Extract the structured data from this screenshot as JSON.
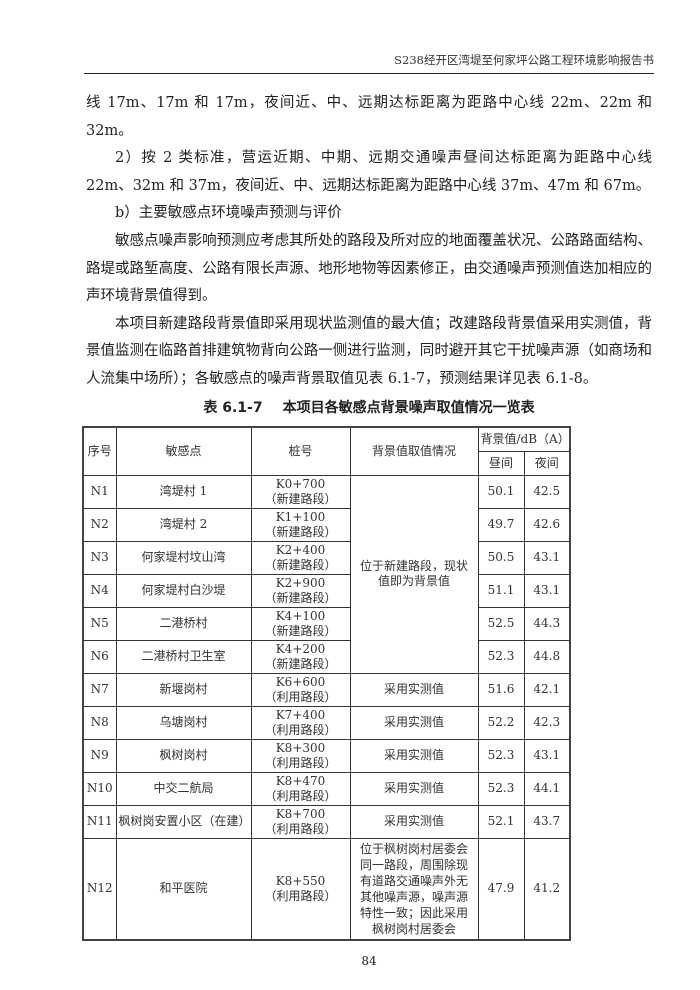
{
  "header": {
    "title": "S238经开区湾堤至何家坪公路工程环境影响报告书"
  },
  "paragraphs": [
    "线 17m、17m 和 17m，夜间近、中、远期达标距离为距路中心线 22m、22m 和 32m。",
    "2）按 2 类标准，营运近期、中期、远期交通噪声昼间达标距离为距路中心线 22m、32m 和 37m，夜间近、中、远期达标距离为距路中心线 37m、47m 和 67m。",
    "b）主要敏感点环境噪声预测与评价",
    "敏感点噪声影响预测应考虑其所处的路段及所对应的地面覆盖状况、公路路面结构、路堤或路堑高度、公路有限长声源、地形地物等因素修正，由交通噪声预测值迭加相应的声环境背景值得到。",
    "本项目新建路段背景值即采用现状监测值的最大值；改建路段背景值采用实测值，背景值监测在临路首排建筑物背向公路一侧进行监测，同时避开其它干扰噪声源（如商场和人流集中场所）；各敏感点的噪声背景取值见表 6.1-7，预测结果详见表 6.1-8。"
  ],
  "table": {
    "number": "表 6.1-7",
    "title": "本项目各敏感点背景噪声取值情况一览表",
    "headers": {
      "no": "序号",
      "point": "敏感点",
      "station": "桩号",
      "basis": "背景值取值情况",
      "bg": "背景值/dB（A）",
      "day": "昼间",
      "night": "夜间"
    },
    "rows": [
      {
        "no": "N1",
        "point": "湾堤村 1",
        "station": "K0+700",
        "segment": "（新建路段）",
        "basis": "位于新建路段，现状值即为背景值",
        "day": "50.1",
        "night": "42.5"
      },
      {
        "no": "N2",
        "point": "湾堤村 2",
        "station": "K1+100",
        "segment": "（新建路段）",
        "day": "49.7",
        "night": "42.6"
      },
      {
        "no": "N3",
        "point": "何家堤村坟山湾",
        "station": "K2+400",
        "segment": "（新建路段）",
        "day": "50.5",
        "night": "43.1"
      },
      {
        "no": "N4",
        "point": "何家堤村白沙堤",
        "station": "K2+900",
        "segment": "（新建路段）",
        "day": "51.1",
        "night": "43.1"
      },
      {
        "no": "N5",
        "point": "二港桥村",
        "station": "K4+100",
        "segment": "（新建路段）",
        "day": "52.5",
        "night": "44.3"
      },
      {
        "no": "N6",
        "point": "二港桥村卫生室",
        "station": "K4+200",
        "segment": "（新建路段）",
        "day": "52.3",
        "night": "44.8"
      },
      {
        "no": "N7",
        "point": "新堰岗村",
        "station": "K6+600",
        "segment": "（利用路段）",
        "basis": "采用实测值",
        "day": "51.6",
        "night": "42.1"
      },
      {
        "no": "N8",
        "point": "乌塘岗村",
        "station": "K7+400",
        "segment": "（利用路段）",
        "basis": "采用实测值",
        "day": "52.2",
        "night": "42.3"
      },
      {
        "no": "N9",
        "point": "枫树岗村",
        "station": "K8+300",
        "segment": "（利用路段）",
        "basis": "采用实测值",
        "day": "52.3",
        "night": "43.1"
      },
      {
        "no": "N10",
        "point": "中交二航局",
        "station": "K8+470",
        "segment": "（利用路段）",
        "basis": "采用实测值",
        "day": "52.3",
        "night": "44.1"
      },
      {
        "no": "N11",
        "point": "枫树岗安置小区（在建）",
        "station": "K8+700",
        "segment": "（利用路段）",
        "basis": "采用实测值",
        "day": "52.1",
        "night": "43.7"
      },
      {
        "no": "N12",
        "point": "和平医院",
        "station": "K8+550",
        "segment": "（利用路段）",
        "basis": "位于枫树岗村居委会同一路段，周围除现有道路交通噪声外无其他噪声源，噪声源特性一致；因此采用枫树岗村居委会",
        "day": "47.9",
        "night": "41.2"
      }
    ]
  },
  "footer": {
    "page_number": "84"
  }
}
